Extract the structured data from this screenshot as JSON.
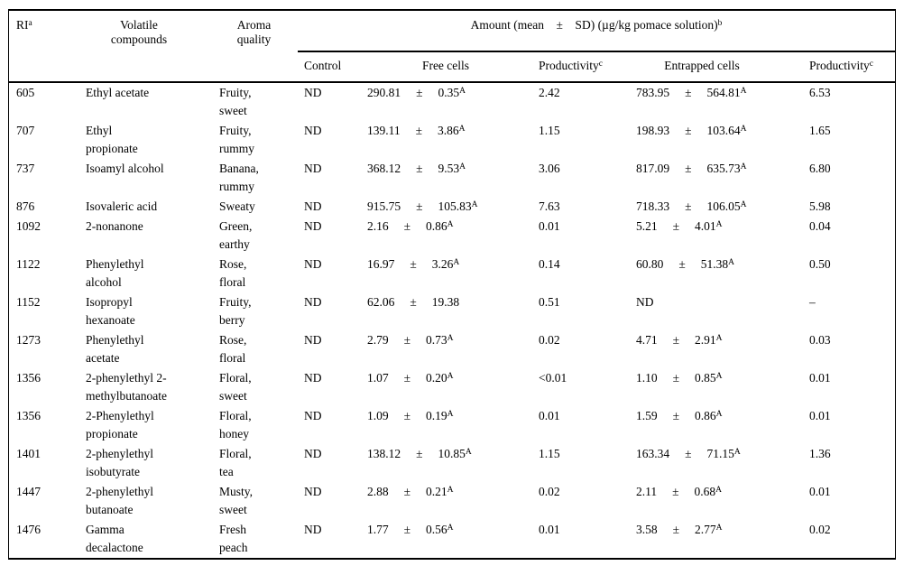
{
  "colors": {
    "text": "#000000",
    "background": "#ffffff",
    "rule": "#000000"
  },
  "table": {
    "header": {
      "ri": {
        "label": "RI",
        "sup": "a"
      },
      "volatile": [
        "Volatile",
        "compounds"
      ],
      "aroma": [
        "Aroma",
        "quality"
      ],
      "amount": {
        "label": "Amount (mean ± SD) (µg/kg pomace solution)",
        "sup": "b"
      },
      "sub": {
        "control": "Control",
        "free": "Free cells",
        "prod1": {
          "label": "Productivity",
          "sup": "c"
        },
        "entrapped": "Entrapped cells",
        "prod2": {
          "label": "Productivity",
          "sup": "c"
        }
      }
    },
    "rows": [
      {
        "ri": "605",
        "compound": [
          "Ethyl acetate"
        ],
        "aroma": [
          "Fruity,",
          "sweet"
        ],
        "control": "ND",
        "free": {
          "mean": "290.81",
          "pm": "±",
          "sd": "0.35",
          "sup": "A"
        },
        "prod1": "2.42",
        "entrapped": {
          "mean": "783.95",
          "pm": "±",
          "sd": "564.81",
          "sup": "A"
        },
        "prod2": "6.53"
      },
      {
        "ri": "707",
        "compound": [
          "Ethyl",
          "propionate"
        ],
        "aroma": [
          "Fruity,",
          "rummy"
        ],
        "control": "ND",
        "free": {
          "mean": "139.11",
          "pm": "±",
          "sd": "3.86",
          "sup": "A"
        },
        "prod1": "1.15",
        "entrapped": {
          "mean": "198.93",
          "pm": "±",
          "sd": "103.64",
          "sup": "A"
        },
        "prod2": "1.65"
      },
      {
        "ri": "737",
        "compound": [
          "Isoamyl alcohol"
        ],
        "aroma": [
          "Banana,",
          "rummy"
        ],
        "control": "ND",
        "free": {
          "mean": "368.12",
          "pm": "±",
          "sd": "9.53",
          "sup": "A"
        },
        "prod1": "3.06",
        "entrapped": {
          "mean": "817.09",
          "pm": "±",
          "sd": "635.73",
          "sup": "A"
        },
        "prod2": "6.80"
      },
      {
        "ri": "876",
        "compound": [
          "Isovaleric acid"
        ],
        "aroma": [
          "Sweaty"
        ],
        "control": "ND",
        "free": {
          "mean": "915.75",
          "pm": "±",
          "sd": "105.83",
          "sup": "A"
        },
        "prod1": "7.63",
        "entrapped": {
          "mean": "718.33",
          "pm": "±",
          "sd": "106.05",
          "sup": "A"
        },
        "prod2": "5.98"
      },
      {
        "ri": "1092",
        "compound": [
          "2-nonanone"
        ],
        "aroma": [
          "Green,",
          "earthy"
        ],
        "control": "ND",
        "free": {
          "mean": "2.16",
          "pm": "±",
          "sd": "0.86",
          "sup": "A"
        },
        "prod1": "0.01",
        "entrapped": {
          "mean": "5.21",
          "pm": "±",
          "sd": "4.01",
          "sup": "A"
        },
        "prod2": "0.04"
      },
      {
        "ri": "1122",
        "compound": [
          "Phenylethyl",
          "alcohol"
        ],
        "aroma": [
          "Rose,",
          "floral"
        ],
        "control": "ND",
        "free": {
          "mean": "16.97",
          "pm": "±",
          "sd": "3.26",
          "sup": "A"
        },
        "prod1": "0.14",
        "entrapped": {
          "mean": "60.80",
          "pm": "±",
          "sd": "51.38",
          "sup": "A"
        },
        "prod2": "0.50"
      },
      {
        "ri": "1152",
        "compound": [
          "Isopropyl",
          "hexanoate"
        ],
        "aroma": [
          "Fruity,",
          "berry"
        ],
        "control": "ND",
        "free": {
          "mean": "62.06",
          "pm": "±",
          "sd": "19.38",
          "sup": ""
        },
        "prod1": "0.51",
        "entrapped": {
          "mean": "ND",
          "pm": "",
          "sd": "",
          "sup": ""
        },
        "prod2": "–"
      },
      {
        "ri": "1273",
        "compound": [
          "Phenylethyl",
          "acetate"
        ],
        "aroma": [
          "Rose,",
          "floral"
        ],
        "control": "ND",
        "free": {
          "mean": "2.79",
          "pm": "±",
          "sd": "0.73",
          "sup": "A"
        },
        "prod1": "0.02",
        "entrapped": {
          "mean": "4.71",
          "pm": "±",
          "sd": "2.91",
          "sup": "A"
        },
        "prod2": "0.03"
      },
      {
        "ri": "1356",
        "compound": [
          "2-phenylethyl 2-",
          "methylbutanoate"
        ],
        "aroma": [
          "Floral,",
          "sweet"
        ],
        "control": "ND",
        "free": {
          "mean": "1.07",
          "pm": "±",
          "sd": "0.20",
          "sup": "A"
        },
        "prod1": "<0.01",
        "entrapped": {
          "mean": "1.10",
          "pm": "±",
          "sd": "0.85",
          "sup": "A"
        },
        "prod2": "0.01"
      },
      {
        "ri": "1356",
        "compound": [
          "2-Phenylethyl",
          "propionate"
        ],
        "aroma": [
          "Floral,",
          "honey"
        ],
        "control": "ND",
        "free": {
          "mean": "1.09",
          "pm": "±",
          "sd": "0.19",
          "sup": "A"
        },
        "prod1": "0.01",
        "entrapped": {
          "mean": "1.59",
          "pm": "±",
          "sd": "0.86",
          "sup": "A"
        },
        "prod2": "0.01"
      },
      {
        "ri": "1401",
        "compound": [
          "2-phenylethyl",
          "isobutyrate"
        ],
        "aroma": [
          "Floral,",
          "tea"
        ],
        "control": "ND",
        "free": {
          "mean": "138.12",
          "pm": "±",
          "sd": "10.85",
          "sup": "A"
        },
        "prod1": "1.15",
        "entrapped": {
          "mean": "163.34",
          "pm": "±",
          "sd": "71.15",
          "sup": "A"
        },
        "prod2": "1.36"
      },
      {
        "ri": "1447",
        "compound": [
          "2-phenylethyl",
          "butanoate"
        ],
        "aroma": [
          "Musty,",
          "sweet"
        ],
        "control": "ND",
        "free": {
          "mean": "2.88",
          "pm": "±",
          "sd": "0.21",
          "sup": "A"
        },
        "prod1": "0.02",
        "entrapped": {
          "mean": "2.11",
          "pm": "±",
          "sd": "0.68",
          "sup": "A"
        },
        "prod2": "0.01"
      },
      {
        "ri": "1476",
        "compound": [
          "Gamma",
          "decalactone"
        ],
        "aroma": [
          "Fresh",
          "peach"
        ],
        "control": "ND",
        "free": {
          "mean": "1.77",
          "pm": "±",
          "sd": "0.56",
          "sup": "A"
        },
        "prod1": "0.01",
        "entrapped": {
          "mean": "3.58",
          "pm": "±",
          "sd": "2.77",
          "sup": "A"
        },
        "prod2": "0.02"
      }
    ]
  }
}
